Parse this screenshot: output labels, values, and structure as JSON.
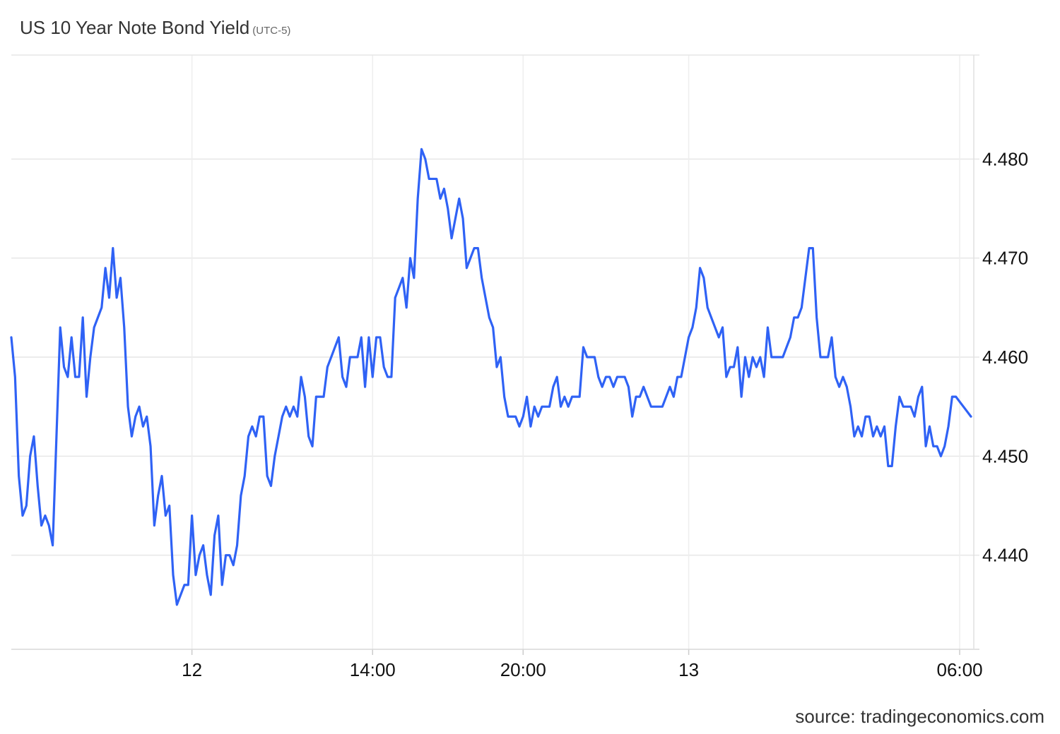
{
  "chart_data": {
    "type": "line",
    "title": "US 10 Year Note Bond Yield",
    "subtitle": "(UTC-5)",
    "source": "source: tradingeconomics.com",
    "line_color": "#2f62f5",
    "grid": true,
    "ylim": [
      4.4305,
      4.4905
    ],
    "y_ticks": [
      {
        "label": "4.480",
        "value": 4.48
      },
      {
        "label": "4.470",
        "value": 4.47
      },
      {
        "label": "4.460",
        "value": 4.46
      },
      {
        "label": "4.450",
        "value": 4.45
      },
      {
        "label": "4.440",
        "value": 4.44
      }
    ],
    "x_ticks": [
      {
        "label": "12",
        "index": 48
      },
      {
        "label": "14:00",
        "index": 96
      },
      {
        "label": "20:00",
        "index": 136
      },
      {
        "label": "13",
        "index": 180
      },
      {
        "label": "06:00",
        "index": 252
      }
    ],
    "series": [
      {
        "values": [
          4.462,
          4.458,
          4.448,
          4.444,
          4.445,
          4.45,
          4.452,
          4.447,
          4.443,
          4.444,
          4.443,
          4.441,
          4.452,
          4.463,
          4.459,
          4.458,
          4.462,
          4.458,
          4.458,
          4.464,
          4.456,
          4.46,
          4.463,
          4.464,
          4.465,
          4.469,
          4.466,
          4.471,
          4.466,
          4.468,
          4.463,
          4.455,
          4.452,
          4.454,
          4.455,
          4.453,
          4.454,
          4.451,
          4.443,
          4.446,
          4.448,
          4.444,
          4.445,
          4.438,
          4.435,
          4.436,
          4.437,
          4.437,
          4.444,
          4.438,
          4.44,
          4.441,
          4.438,
          4.436,
          4.442,
          4.444,
          4.437,
          4.44,
          4.44,
          4.439,
          4.441,
          4.446,
          4.448,
          4.452,
          4.453,
          4.452,
          4.454,
          4.454,
          4.448,
          4.447,
          4.45,
          4.452,
          4.454,
          4.455,
          4.454,
          4.455,
          4.454,
          4.458,
          4.456,
          4.452,
          4.451,
          4.456,
          4.456,
          4.456,
          4.459,
          4.46,
          4.461,
          4.462,
          4.458,
          4.457,
          4.46,
          4.46,
          4.46,
          4.462,
          4.457,
          4.462,
          4.458,
          4.462,
          4.462,
          4.459,
          4.458,
          4.458,
          4.466,
          4.467,
          4.468,
          4.465,
          4.47,
          4.468,
          4.476,
          4.481,
          4.48,
          4.478,
          4.478,
          4.478,
          4.476,
          4.477,
          4.475,
          4.472,
          4.474,
          4.476,
          4.474,
          4.469,
          4.47,
          4.471,
          4.471,
          4.468,
          4.466,
          4.464,
          4.463,
          4.459,
          4.46,
          4.456,
          4.454,
          4.454,
          4.454,
          4.453,
          4.454,
          4.456,
          4.453,
          4.455,
          4.454,
          4.455,
          4.455,
          4.455,
          4.457,
          4.458,
          4.455,
          4.456,
          4.455,
          4.456,
          4.456,
          4.456,
          4.461,
          4.46,
          4.46,
          4.46,
          4.458,
          4.457,
          4.458,
          4.458,
          4.457,
          4.458,
          4.458,
          4.458,
          4.457,
          4.454,
          4.456,
          4.456,
          4.457,
          4.456,
          4.455,
          4.455,
          4.455,
          4.455,
          4.456,
          4.457,
          4.456,
          4.458,
          4.458,
          4.46,
          4.462,
          4.463,
          4.465,
          4.469,
          4.468,
          4.465,
          4.464,
          4.463,
          4.462,
          4.463,
          4.458,
          4.459,
          4.459,
          4.461,
          4.456,
          4.46,
          4.458,
          4.46,
          4.459,
          4.46,
          4.458,
          4.463,
          4.46,
          4.46,
          4.46,
          4.46,
          4.461,
          4.462,
          4.464,
          4.464,
          4.465,
          4.468,
          4.471,
          4.471,
          4.464,
          4.46,
          4.46,
          4.46,
          4.462,
          4.458,
          4.457,
          4.458,
          4.457,
          4.455,
          4.452,
          4.453,
          4.452,
          4.454,
          4.454,
          4.452,
          4.453,
          4.452,
          4.453,
          4.449,
          4.449,
          4.453,
          4.456,
          4.455,
          4.455,
          4.455,
          4.454,
          4.456,
          4.457,
          4.451,
          4.453,
          4.451,
          4.451,
          4.45,
          4.451,
          4.453,
          4.456,
          4.456,
          4.4555,
          4.455,
          4.4545,
          4.454
        ]
      }
    ]
  }
}
